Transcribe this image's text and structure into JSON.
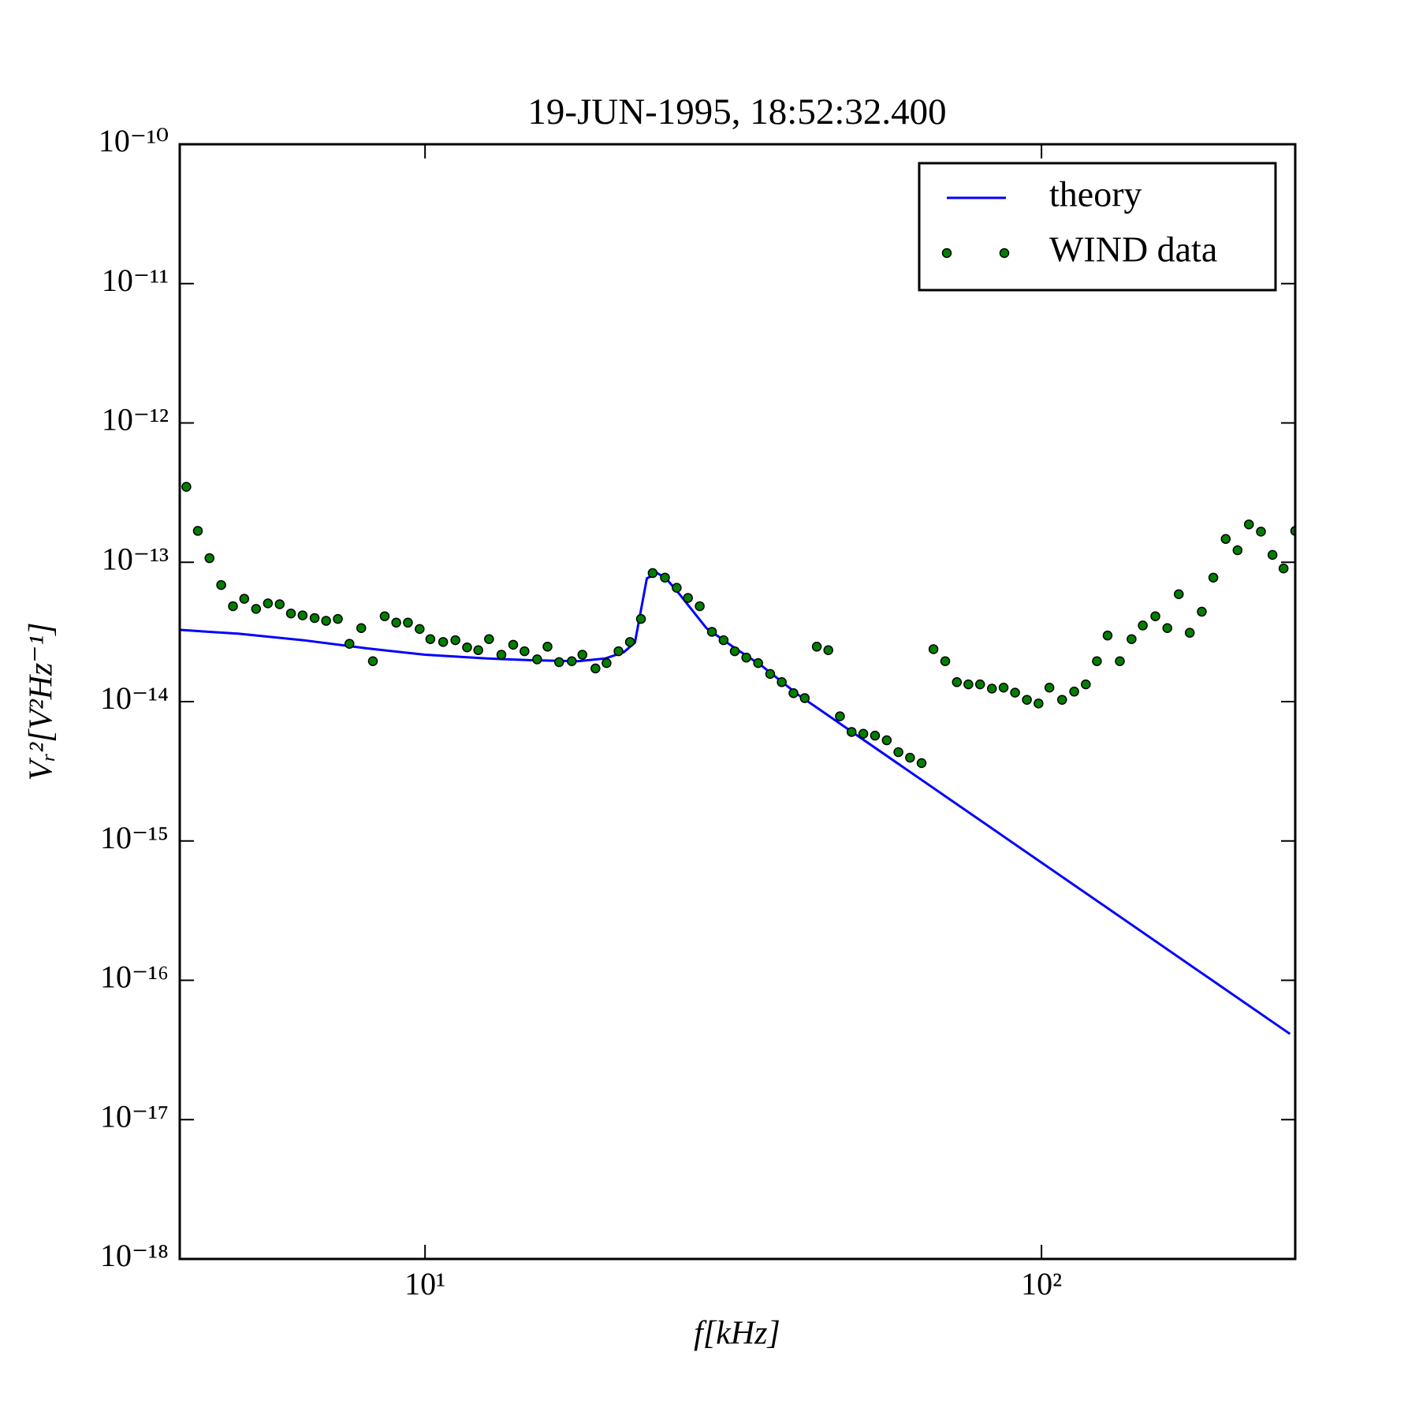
{
  "chart_data": {
    "type": "line",
    "title": "19-JUN-1995, 18:52:32.400",
    "x_label": "f[kHz]",
    "y_label": "Vᵣ²[V²Hz⁻¹]",
    "xscale": "log",
    "yscale": "log",
    "xlim": [
      4,
      258
    ],
    "ylim": [
      1e-18,
      1e-10
    ],
    "xticks": [
      {
        "value": 10,
        "label": "10¹"
      },
      {
        "value": 100,
        "label": "10²"
      }
    ],
    "yticks": [
      {
        "value": 1e-18,
        "label": "10⁻¹⁸"
      },
      {
        "value": 1e-17,
        "label": "10⁻¹⁷"
      },
      {
        "value": 1e-16,
        "label": "10⁻¹⁶"
      },
      {
        "value": 1e-15,
        "label": "10⁻¹⁵"
      },
      {
        "value": 1e-14,
        "label": "10⁻¹⁴"
      },
      {
        "value": 1e-13,
        "label": "10⁻¹³"
      },
      {
        "value": 1e-12,
        "label": "10⁻¹²"
      },
      {
        "value": 1e-11,
        "label": "10⁻¹¹"
      },
      {
        "value": 1e-10,
        "label": "10⁻¹⁰"
      }
    ],
    "legend": "upper right",
    "series": [
      {
        "name": "theory",
        "type": "line",
        "color": "#0000ff",
        "x": [
          4.01,
          4.99,
          6.34,
          8.06,
          10,
          12.6,
          14.9,
          17.7,
          19.6,
          21.0,
          21.9,
          22.9,
          23.8,
          24.6,
          25.8,
          28.6,
          31.7,
          35.1,
          40.3,
          253
        ],
        "values": [
          3.27e-14,
          3.07e-14,
          2.76e-14,
          2.41e-14,
          2.17e-14,
          2.04e-14,
          1.98e-14,
          1.95e-14,
          2.04e-14,
          2.26e-14,
          2.65e-14,
          7.67e-14,
          8.37e-14,
          7.67e-14,
          5.99e-14,
          3.37e-14,
          2.45e-14,
          1.82e-14,
          1.12e-14,
          4.12e-17
        ]
      },
      {
        "name": "WIND data",
        "type": "scatter",
        "color": "#008000",
        "x": [
          4.1,
          4.28,
          4.47,
          4.67,
          4.88,
          5.09,
          5.32,
          5.56,
          5.81,
          6.06,
          6.33,
          6.62,
          6.91,
          7.22,
          7.54,
          7.88,
          8.23,
          8.6,
          8.98,
          9.38,
          9.8,
          10.2,
          10.7,
          11.2,
          11.7,
          12.2,
          12.7,
          13.3,
          13.9,
          14.5,
          15.2,
          15.8,
          16.5,
          17.3,
          18.0,
          18.9,
          19.7,
          20.6,
          21.5,
          22.4,
          23.4,
          24.5,
          25.6,
          26.7,
          27.9,
          29.2,
          30.5,
          31.8,
          33.2,
          34.7,
          36.3,
          37.9,
          39.6,
          41.3,
          43.2,
          45.1,
          47.1,
          49.2,
          51.4,
          53.7,
          56.1,
          58.6,
          61.2,
          63.9,
          66.8,
          69.8,
          72.9,
          76.1,
          79.5,
          83.1,
          86.8,
          90.6,
          94.7,
          98.9,
          103,
          108,
          113,
          118,
          123,
          128,
          134,
          140,
          146,
          153,
          160,
          167,
          174,
          182,
          190,
          199,
          208,
          217,
          227,
          237,
          247,
          258
        ],
        "values": [
          3.48e-13,
          1.68e-13,
          1.07e-13,
          6.87e-14,
          4.84e-14,
          5.47e-14,
          4.63e-14,
          5.07e-14,
          5e-14,
          4.29e-14,
          4.16e-14,
          3.98e-14,
          3.8e-14,
          3.92e-14,
          2.6e-14,
          3.37e-14,
          1.95e-14,
          4.1e-14,
          3.69e-14,
          3.69e-14,
          3.32e-14,
          2.81e-14,
          2.68e-14,
          2.76e-14,
          2.45e-14,
          2.34e-14,
          2.81e-14,
          2.17e-14,
          2.56e-14,
          2.3e-14,
          2.01e-14,
          2.48e-14,
          1.92e-14,
          1.95e-14,
          2.17e-14,
          1.73e-14,
          1.89e-14,
          2.3e-14,
          2.68e-14,
          3.92e-14,
          8.37e-14,
          7.76e-14,
          6.56e-14,
          5.55e-14,
          4.84e-14,
          3.17e-14,
          2.76e-14,
          2.3e-14,
          2.07e-14,
          1.89e-14,
          1.58e-14,
          1.38e-14,
          1.15e-14,
          1.06e-14,
          2.48e-14,
          2.34e-14,
          7.85e-15,
          6.06e-15,
          5.88e-15,
          5.7e-15,
          5.28e-15,
          4.34e-15,
          3.96e-15,
          3.62e-15,
          2.38e-14,
          1.95e-14,
          1.38e-14,
          1.33e-14,
          1.33e-14,
          1.24e-14,
          1.26e-14,
          1.16e-14,
          1.03e-14,
          9.7e-15,
          1.26e-14,
          1.03e-14,
          1.18e-14,
          1.33e-14,
          1.95e-14,
          2.98e-14,
          1.95e-14,
          2.81e-14,
          3.52e-14,
          4.1e-14,
          3.37e-14,
          5.9e-14,
          3.12e-14,
          4.42e-14,
          7.76e-14,
          1.47e-13,
          1.22e-13,
          1.87e-13,
          1.66e-13,
          1.13e-13,
          9.03e-14,
          1.68e-13
        ]
      }
    ]
  }
}
